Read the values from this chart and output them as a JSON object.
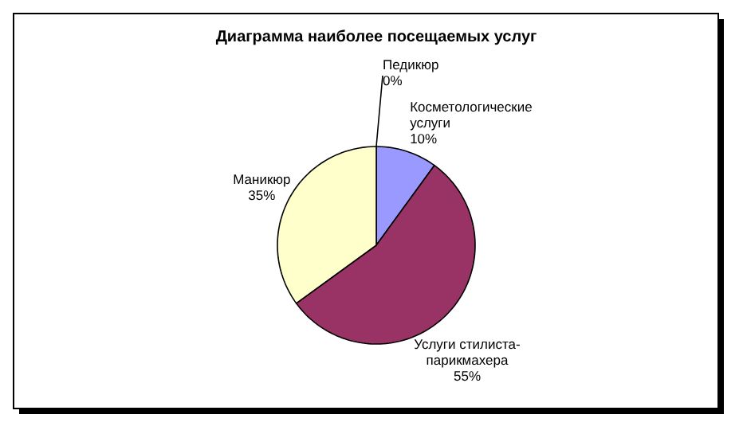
{
  "chart_data": {
    "type": "pie",
    "title": "Диаграмма наиболее посещаемых услуг",
    "categories": [
      "Педикюр",
      "Косметологические услуги",
      "Услуги стилиста-парикмахера",
      "Маникюр"
    ],
    "values": [
      0,
      10,
      55,
      35
    ],
    "colors": [
      "#000080",
      "#9999ff",
      "#993366",
      "#ffffcc"
    ],
    "value_labels": [
      "0%",
      "10%",
      "55%",
      "35%"
    ],
    "legend": false
  }
}
